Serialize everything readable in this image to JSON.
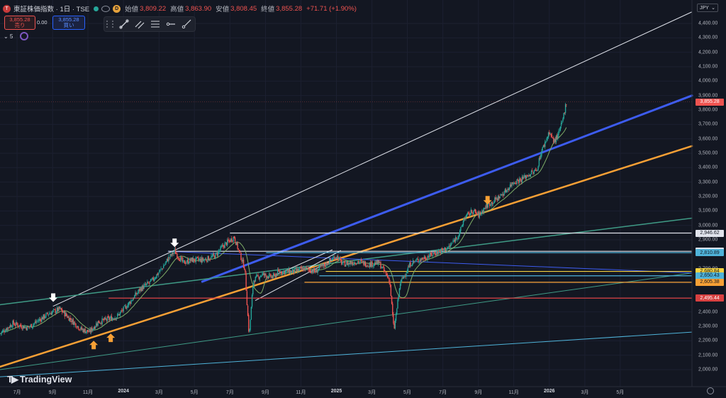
{
  "header": {
    "symbol_icon": "T",
    "title": "東証株価指数 · 1日 · TSE",
    "d_badge": "D",
    "ohlc": [
      {
        "k": "始値",
        "v": "3,809.22"
      },
      {
        "k": "高値",
        "v": "3,863.90"
      },
      {
        "k": "安値",
        "v": "3,808.45"
      },
      {
        "k": "終値",
        "v": "3,855.28"
      }
    ],
    "change": "+71.71 (+1.90%)"
  },
  "trade": {
    "sell_price": "3,855.28",
    "sell_label": "売り",
    "spread": "0.00",
    "buy_price": "3,855.28",
    "buy_label": "買い"
  },
  "indicator": {
    "label": "⌄ 5"
  },
  "currency": "JPY",
  "watermark": "TradingView",
  "colors": {
    "background": "#131722",
    "up": "#26a69a",
    "down": "#ef5350",
    "orange": "#f7a035",
    "blue": "#3d5cf0",
    "white_line": "#e0e3eb",
    "teal": "#3f9b86",
    "cyan": "#4fb3d9",
    "red_level": "#d84040"
  },
  "chart_data": {
    "type": "candlestick",
    "ylim": [
      2000,
      4450
    ],
    "y_ticks": [
      "4,400.00",
      "4,300.00",
      "4,200.00",
      "4,100.00",
      "4,000.00",
      "3,900.00",
      "3,800.00",
      "3,700.00",
      "3,600.00",
      "3,500.00",
      "3,400.00",
      "3,300.00",
      "3,200.00",
      "3,100.00",
      "3,000.00",
      "2,900.00",
      "2,800.00",
      "2,700.00",
      "2,600.00",
      "2,500.00",
      "2,400.00",
      "2,300.00",
      "2,200.00",
      "2,100.00",
      "2,000.00"
    ],
    "x_labels": [
      {
        "label": "7月",
        "t": 2023.5,
        "bold": false
      },
      {
        "label": "9月",
        "t": 2023.667,
        "bold": false
      },
      {
        "label": "11月",
        "t": 2023.833,
        "bold": false
      },
      {
        "label": "2024",
        "t": 2024.0,
        "bold": true
      },
      {
        "label": "3月",
        "t": 2024.167,
        "bold": false
      },
      {
        "label": "5月",
        "t": 2024.333,
        "bold": false
      },
      {
        "label": "7月",
        "t": 2024.5,
        "bold": false
      },
      {
        "label": "9月",
        "t": 2024.667,
        "bold": false
      },
      {
        "label": "11月",
        "t": 2024.833,
        "bold": false
      },
      {
        "label": "2025",
        "t": 2025.0,
        "bold": true
      },
      {
        "label": "3月",
        "t": 2025.167,
        "bold": false
      },
      {
        "label": "5月",
        "t": 2025.333,
        "bold": false
      },
      {
        "label": "7月",
        "t": 2025.5,
        "bold": false
      },
      {
        "label": "9月",
        "t": 2025.667,
        "bold": false
      },
      {
        "label": "11月",
        "t": 2025.833,
        "bold": false
      },
      {
        "label": "2026",
        "t": 2026.0,
        "bold": true
      },
      {
        "label": "3月",
        "t": 2026.167,
        "bold": false
      },
      {
        "label": "5月",
        "t": 2026.333,
        "bold": false
      }
    ],
    "price_path": [
      [
        2023.42,
        2250
      ],
      [
        2023.48,
        2320
      ],
      [
        2023.55,
        2290
      ],
      [
        2023.6,
        2340
      ],
      [
        2023.65,
        2390
      ],
      [
        2023.7,
        2420
      ],
      [
        2023.75,
        2350
      ],
      [
        2023.8,
        2280
      ],
      [
        2023.84,
        2260
      ],
      [
        2023.88,
        2330
      ],
      [
        2023.93,
        2350
      ],
      [
        2023.97,
        2370
      ],
      [
        2024.02,
        2450
      ],
      [
        2024.08,
        2560
      ],
      [
        2024.13,
        2610
      ],
      [
        2024.18,
        2700
      ],
      [
        2024.21,
        2770
      ],
      [
        2024.24,
        2820
      ],
      [
        2024.28,
        2740
      ],
      [
        2024.32,
        2760
      ],
      [
        2024.38,
        2760
      ],
      [
        2024.43,
        2790
      ],
      [
        2024.47,
        2860
      ],
      [
        2024.52,
        2920
      ],
      [
        2024.54,
        2830
      ],
      [
        2024.57,
        2700
      ],
      [
        2024.59,
        2230
      ],
      [
        2024.61,
        2620
      ],
      [
        2024.65,
        2660
      ],
      [
        2024.7,
        2640
      ],
      [
        2024.73,
        2680
      ],
      [
        2024.8,
        2680
      ],
      [
        2024.85,
        2700
      ],
      [
        2024.9,
        2680
      ],
      [
        2024.95,
        2730
      ],
      [
        2025.0,
        2790
      ],
      [
        2025.03,
        2730
      ],
      [
        2025.1,
        2750
      ],
      [
        2025.15,
        2730
      ],
      [
        2025.2,
        2740
      ],
      [
        2025.25,
        2620
      ],
      [
        2025.27,
        2270
      ],
      [
        2025.3,
        2600
      ],
      [
        2025.35,
        2740
      ],
      [
        2025.42,
        2780
      ],
      [
        2025.5,
        2830
      ],
      [
        2025.53,
        2850
      ],
      [
        2025.58,
        2950
      ],
      [
        2025.6,
        3050
      ],
      [
        2025.64,
        3100
      ],
      [
        2025.67,
        3070
      ],
      [
        2025.7,
        3130
      ],
      [
        2025.75,
        3180
      ],
      [
        2025.79,
        3230
      ],
      [
        2025.83,
        3300
      ],
      [
        2025.87,
        3320
      ],
      [
        2025.9,
        3350
      ],
      [
        2025.94,
        3380
      ],
      [
        2025.96,
        3500
      ],
      [
        2026.0,
        3650
      ],
      [
        2026.02,
        3580
      ],
      [
        2026.04,
        3620
      ],
      [
        2026.06,
        3710
      ],
      [
        2026.08,
        3855
      ]
    ],
    "trendlines": [
      {
        "color": "#e0e3eb",
        "width": 1,
        "from": [
          2023.67,
          2440
        ],
        "to": [
          2026.67,
          4480
        ]
      },
      {
        "color": "#3d5cf0",
        "width": 3,
        "from": [
          2024.37,
          2610
        ],
        "to": [
          2026.67,
          3900
        ]
      },
      {
        "color": "#f7a035",
        "width": 2.5,
        "from": [
          2023.42,
          2020
        ],
        "to": [
          2026.67,
          3550
        ]
      },
      {
        "color": "#3f9b86",
        "width": 1.5,
        "from": [
          2023.42,
          2450
        ],
        "to": [
          2026.67,
          3050
        ]
      },
      {
        "color": "#3f9b86",
        "width": 1,
        "from": [
          2023.42,
          2000
        ],
        "to": [
          2026.67,
          2670
        ]
      },
      {
        "color": "#4fb3d9",
        "width": 1,
        "from": [
          2023.42,
          1950
        ],
        "to": [
          2026.67,
          2260
        ]
      },
      {
        "color": "#3d5cf0",
        "width": 1,
        "from": [
          2024.21,
          2820
        ],
        "to": [
          2026.67,
          2670
        ]
      },
      {
        "color": "#e0e3eb",
        "width": 1,
        "from": [
          2024.72,
          2660
        ],
        "to": [
          2024.98,
          2830
        ]
      },
      {
        "color": "#e0e3eb",
        "width": 1,
        "from": [
          2024.62,
          2480
        ],
        "to": [
          2024.98,
          2760
        ]
      },
      {
        "color": "#e0e3eb",
        "width": 1,
        "from": [
          2024.85,
          2690
        ],
        "to": [
          2025.02,
          2825
        ]
      }
    ],
    "horizontal_levels": [
      {
        "price": 2946.62,
        "label": "2,946.62",
        "color": "#e0e3eb",
        "start": 2024.5,
        "tag_bg": "#e0e3eb",
        "tag_fg": "#131722"
      },
      {
        "price": 2820.4,
        "label": "2,820.40",
        "color": "#e0e3eb",
        "start": 2024.21,
        "tag_bg": "#e0e3eb",
        "tag_fg": "#131722"
      },
      {
        "price": 2810.89,
        "label": "2,810.89",
        "color": "#4fb3d9",
        "start": 2024.67,
        "tag_bg": "#4fb3d9",
        "tag_fg": "#131722"
      },
      {
        "price": 2680.84,
        "label": "2,680.84",
        "color": "#f5d240",
        "start": 2024.95,
        "tag_bg": "#f5d240",
        "tag_fg": "#131722"
      },
      {
        "price": 2650.43,
        "label": "2,650.43",
        "color": "#4fb3d9",
        "start": 2024.92,
        "tag_bg": "#4fb3d9",
        "tag_fg": "#131722"
      },
      {
        "price": 2605.38,
        "label": "2,605.38",
        "color": "#f7a035",
        "start": 2024.85,
        "tag_bg": "#f7a035",
        "tag_fg": "#131722"
      },
      {
        "price": 2495.44,
        "label": "2,495.44",
        "color": "#d84040",
        "start": 2023.93,
        "tag_bg": "#d84040",
        "tag_fg": "#ffffff"
      }
    ],
    "current_price": {
      "price": 3855.28,
      "label": "3,855.28",
      "bg": "#ef5350"
    },
    "arrows": [
      {
        "t": 2023.67,
        "price": 2460,
        "dir": "down",
        "color": "#ffffff"
      },
      {
        "t": 2024.24,
        "price": 2840,
        "dir": "down",
        "color": "#ffffff"
      },
      {
        "t": 2025.71,
        "price": 3135,
        "dir": "down",
        "color": "#f7a035"
      },
      {
        "t": 2023.86,
        "price": 2210,
        "dir": "up",
        "color": "#f7a035"
      },
      {
        "t": 2023.94,
        "price": 2260,
        "dir": "up",
        "color": "#f7a035"
      }
    ]
  }
}
